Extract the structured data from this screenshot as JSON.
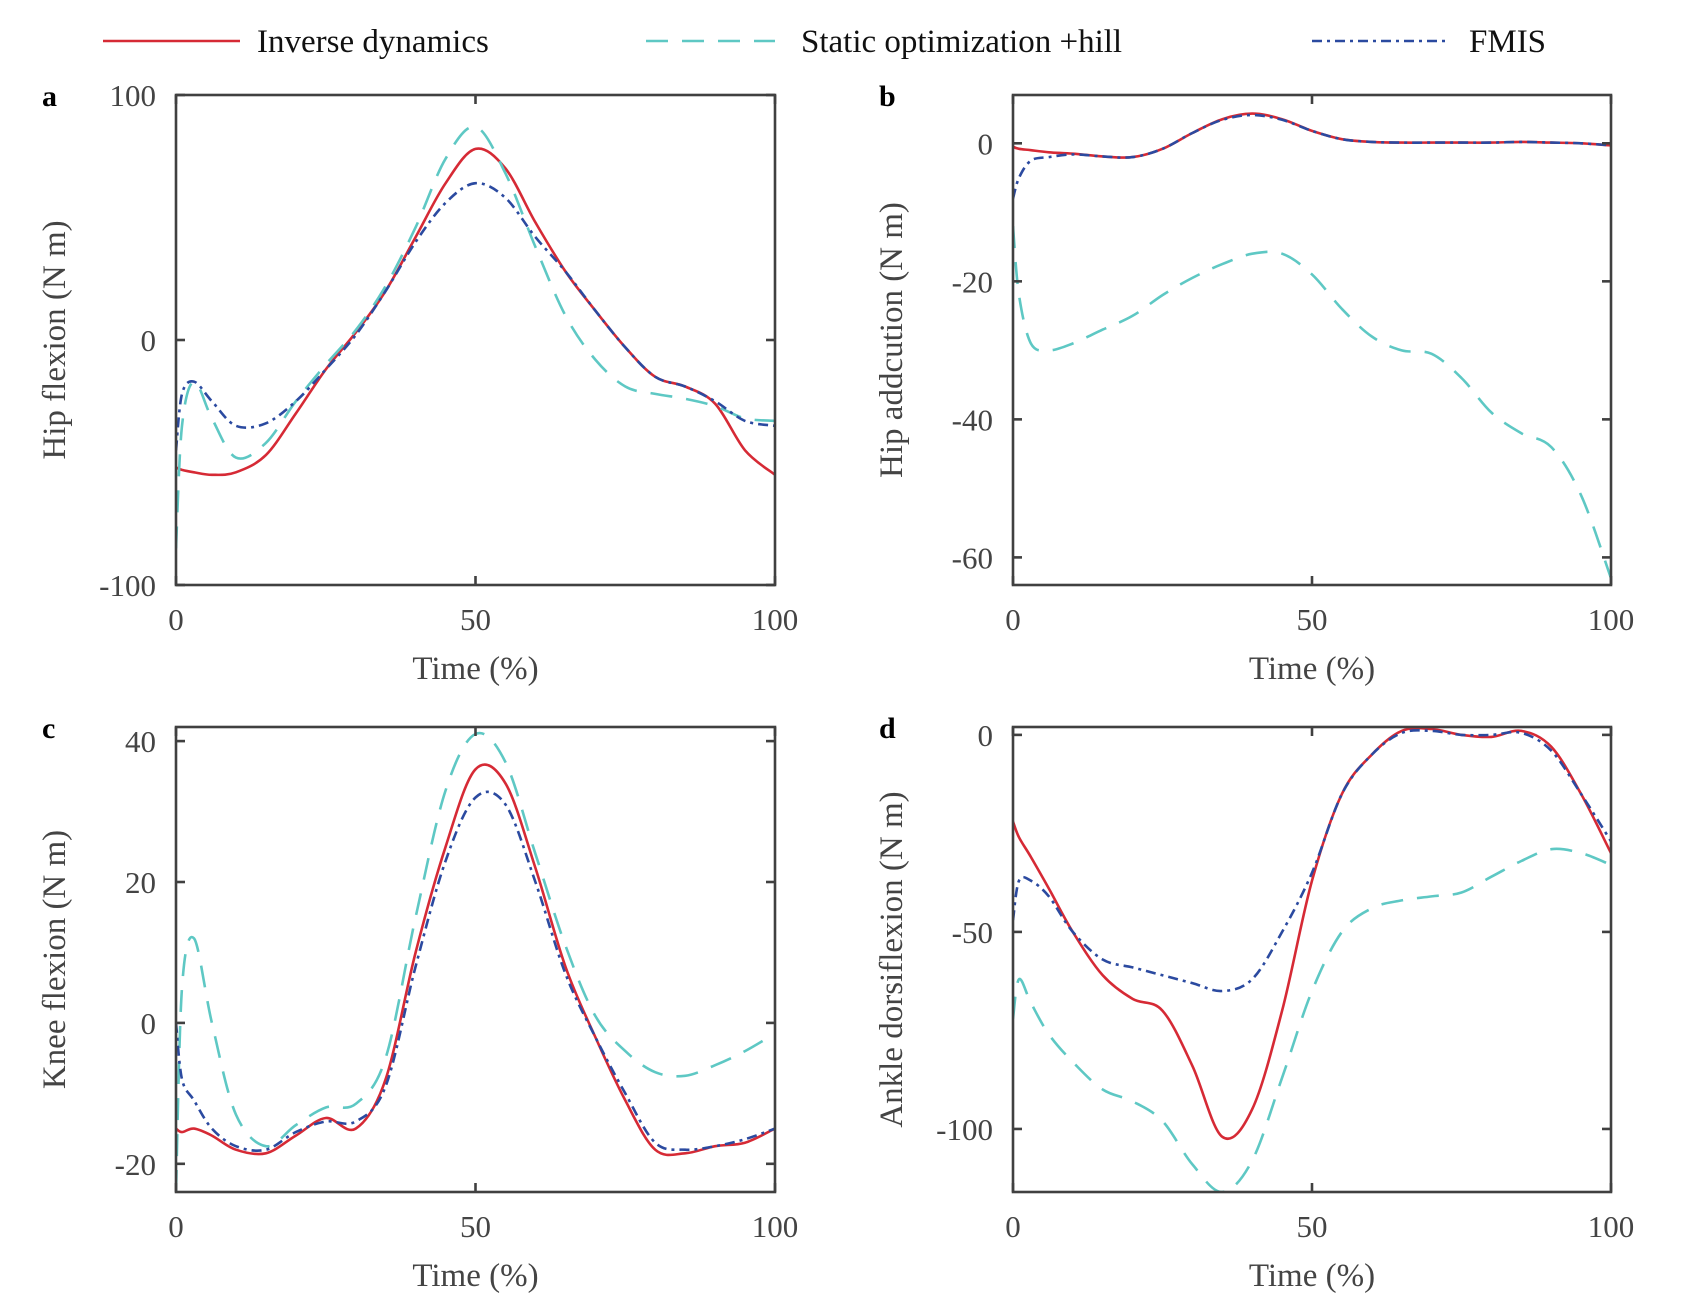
{
  "legend": {
    "items": [
      {
        "label": "Inverse dynamics",
        "color": "#d62a35",
        "style": "solid"
      },
      {
        "label": "Static optimization +hill",
        "color": "#5ec8c4",
        "style": "dashed"
      },
      {
        "label": "FMIS",
        "color": "#2b4aa0",
        "style": "dash-dot"
      }
    ],
    "placement": "top"
  },
  "chart_data": [
    {
      "type": "line",
      "panel_label": "a",
      "xlabel": "Time (%)",
      "ylabel": "Hip flexion (N m)",
      "xlim": [
        0,
        100
      ],
      "ylim": [
        -100,
        100
      ],
      "xticks": [
        0,
        50,
        100
      ],
      "yticks": [
        -100,
        0,
        100
      ],
      "grid": false,
      "x": [
        0,
        1,
        3,
        6,
        10,
        15,
        20,
        25,
        30,
        35,
        40,
        45,
        50,
        55,
        60,
        65,
        70,
        75,
        80,
        85,
        90,
        95,
        100
      ],
      "series": [
        {
          "name": "Inverse dynamics",
          "values": [
            -52,
            -53,
            -54,
            -55,
            -54,
            -47,
            -30,
            -12,
            3,
            20,
            42,
            64,
            78,
            70,
            48,
            28,
            12,
            -3,
            -15,
            -19,
            -26,
            -45,
            -55
          ]
        },
        {
          "name": "Static optimization +hill",
          "values": [
            -85,
            -35,
            -17,
            -32,
            -48,
            -42,
            -25,
            -10,
            4,
            22,
            46,
            74,
            87,
            68,
            38,
            10,
            -8,
            -19,
            -22,
            -24,
            -27,
            -32,
            -33
          ]
        },
        {
          "name": "FMIS",
          "values": [
            -45,
            -22,
            -17,
            -25,
            -35,
            -34,
            -25,
            -12,
            2,
            20,
            40,
            56,
            64,
            58,
            42,
            28,
            12,
            -3,
            -15,
            -19,
            -25,
            -33,
            -35
          ]
        }
      ]
    },
    {
      "type": "line",
      "panel_label": "b",
      "xlabel": "Time (%)",
      "ylabel": "Hip addcution (N m)",
      "xlim": [
        0,
        100
      ],
      "ylim": [
        -64,
        7
      ],
      "xticks": [
        0,
        50,
        100
      ],
      "yticks": [
        -60,
        -40,
        -20,
        0
      ],
      "grid": false,
      "x": [
        0,
        1,
        3,
        6,
        10,
        15,
        20,
        25,
        30,
        35,
        40,
        45,
        50,
        55,
        60,
        65,
        70,
        75,
        80,
        85,
        90,
        95,
        100
      ],
      "series": [
        {
          "name": "Inverse dynamics",
          "values": [
            -0.5,
            -0.8,
            -1,
            -1.3,
            -1.5,
            -1.9,
            -2,
            -0.8,
            1.5,
            3.5,
            4.3,
            3.5,
            1.8,
            0.6,
            0.2,
            0.1,
            0.1,
            0.1,
            0.1,
            0.2,
            0.1,
            0,
            -0.3
          ]
        },
        {
          "name": "Static optimization +hill",
          "values": [
            -12,
            -22,
            -29,
            -30,
            -29,
            -27,
            -25,
            -22,
            -19.5,
            -17.5,
            -16,
            -16,
            -19,
            -24,
            -28,
            -30,
            -30.5,
            -34,
            -39,
            -42,
            -44,
            -51,
            -63
          ]
        },
        {
          "name": "FMIS",
          "values": [
            -8,
            -5,
            -2.5,
            -2,
            -1.6,
            -1.9,
            -2,
            -0.8,
            1.5,
            3.4,
            4.1,
            3.4,
            1.8,
            0.6,
            0.2,
            0.1,
            0.1,
            0.1,
            0.1,
            0.2,
            0.1,
            0,
            -0.3
          ]
        }
      ]
    },
    {
      "type": "line",
      "panel_label": "c",
      "xlabel": "Time (%)",
      "ylabel": "Knee flexion (N m)",
      "xlim": [
        0,
        100
      ],
      "ylim": [
        -24,
        42
      ],
      "xticks": [
        0,
        50,
        100
      ],
      "yticks": [
        -20,
        0,
        20,
        40
      ],
      "grid": false,
      "x": [
        0,
        1,
        3,
        6,
        10,
        15,
        20,
        25,
        30,
        35,
        40,
        45,
        50,
        55,
        60,
        65,
        70,
        75,
        80,
        85,
        90,
        95,
        100
      ],
      "series": [
        {
          "name": "Inverse dynamics",
          "values": [
            -15,
            -15.5,
            -15,
            -16,
            -18,
            -18.5,
            -16,
            -13.5,
            -15,
            -8,
            10,
            25,
            36,
            34,
            22,
            8,
            -2,
            -11,
            -18,
            -18.5,
            -17.5,
            -17,
            -15
          ]
        },
        {
          "name": "Static optimization +hill",
          "values": [
            -24,
            5,
            12,
            0,
            -13,
            -17.5,
            -14.5,
            -12,
            -11.5,
            -5,
            15,
            33,
            41,
            37,
            24,
            11,
            1,
            -4,
            -7,
            -7.5,
            -6,
            -4,
            -1.5
          ]
        },
        {
          "name": "FMIS",
          "values": [
            0,
            -8,
            -11,
            -15,
            -17.5,
            -18,
            -15.5,
            -14,
            -14,
            -9,
            8,
            23,
            32,
            31,
            20,
            7,
            -2,
            -10,
            -17,
            -18,
            -17.5,
            -16.5,
            -15
          ]
        }
      ]
    },
    {
      "type": "line",
      "panel_label": "d",
      "xlabel": "Time (%)",
      "ylabel": "Ankle dorsiflexion (N m)",
      "xlim": [
        0,
        100
      ],
      "ylim": [
        -116,
        2
      ],
      "xticks": [
        0,
        50,
        100
      ],
      "yticks": [
        -100,
        -50,
        0
      ],
      "grid": false,
      "x": [
        0,
        1,
        3,
        6,
        10,
        15,
        20,
        25,
        30,
        35,
        40,
        45,
        50,
        55,
        60,
        65,
        70,
        75,
        80,
        85,
        90,
        95,
        100
      ],
      "series": [
        {
          "name": "Inverse dynamics",
          "values": [
            -22,
            -26,
            -31,
            -39,
            -50,
            -61,
            -67,
            -70,
            -84,
            -102,
            -95,
            -70,
            -37,
            -15,
            -5,
            1,
            1.5,
            0,
            -0.5,
            1,
            -3,
            -15,
            -30
          ]
        },
        {
          "name": "Static optimization +hill",
          "values": [
            -72,
            -62,
            -68,
            -76,
            -83,
            -90,
            -93,
            -98,
            -109,
            -116,
            -108,
            -87,
            -65,
            -50,
            -44,
            -42,
            -41,
            -40,
            -36,
            -32,
            -29,
            -30,
            -33
          ]
        },
        {
          "name": "FMIS",
          "values": [
            -47,
            -37,
            -37,
            -41,
            -50,
            -57,
            -59,
            -61,
            -63,
            -65,
            -62,
            -50,
            -35,
            -15,
            -5,
            0.5,
            1,
            0,
            0,
            0.5,
            -4,
            -15,
            -27
          ]
        }
      ]
    }
  ]
}
